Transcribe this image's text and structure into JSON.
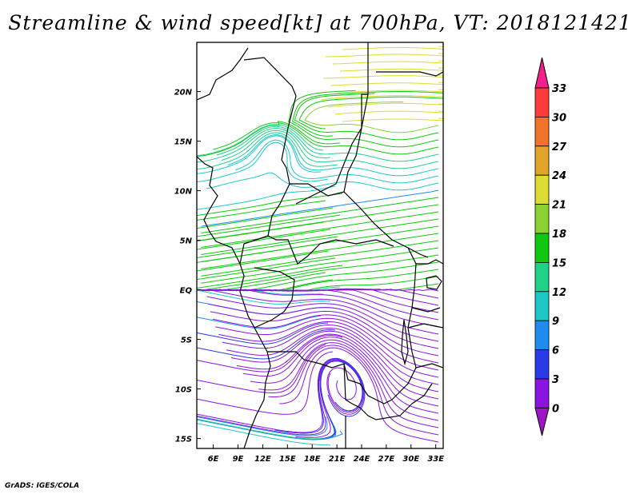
{
  "title": "Streamline & wind speed[kt] at 700hPa, VT: 2018121421",
  "credit": "GrADS: IGES/COLA",
  "map": {
    "lon_labels": [
      "6E",
      "9E",
      "12E",
      "15E",
      "18E",
      "21E",
      "24E",
      "27E",
      "30E",
      "33E"
    ],
    "lat_labels": [
      "20N",
      "15N",
      "10N",
      "5N",
      "EQ",
      "5S",
      "10S",
      "15S"
    ],
    "lon_range": [
      4,
      34
    ],
    "lat_range": [
      -16,
      25
    ]
  },
  "colorbar": {
    "labels": [
      "33",
      "30",
      "27",
      "24",
      "21",
      "18",
      "15",
      "12",
      "9",
      "6",
      "3",
      "0"
    ],
    "colors": [
      "#f51e8c",
      "#ff3a3a",
      "#f2742a",
      "#e0a52a",
      "#dcdc32",
      "#8ad232",
      "#10c810",
      "#1ed288",
      "#1ec8c8",
      "#1e8cf0",
      "#2a3ae6",
      "#8a14e0",
      "#a014c8"
    ],
    "unit": "kt"
  }
}
